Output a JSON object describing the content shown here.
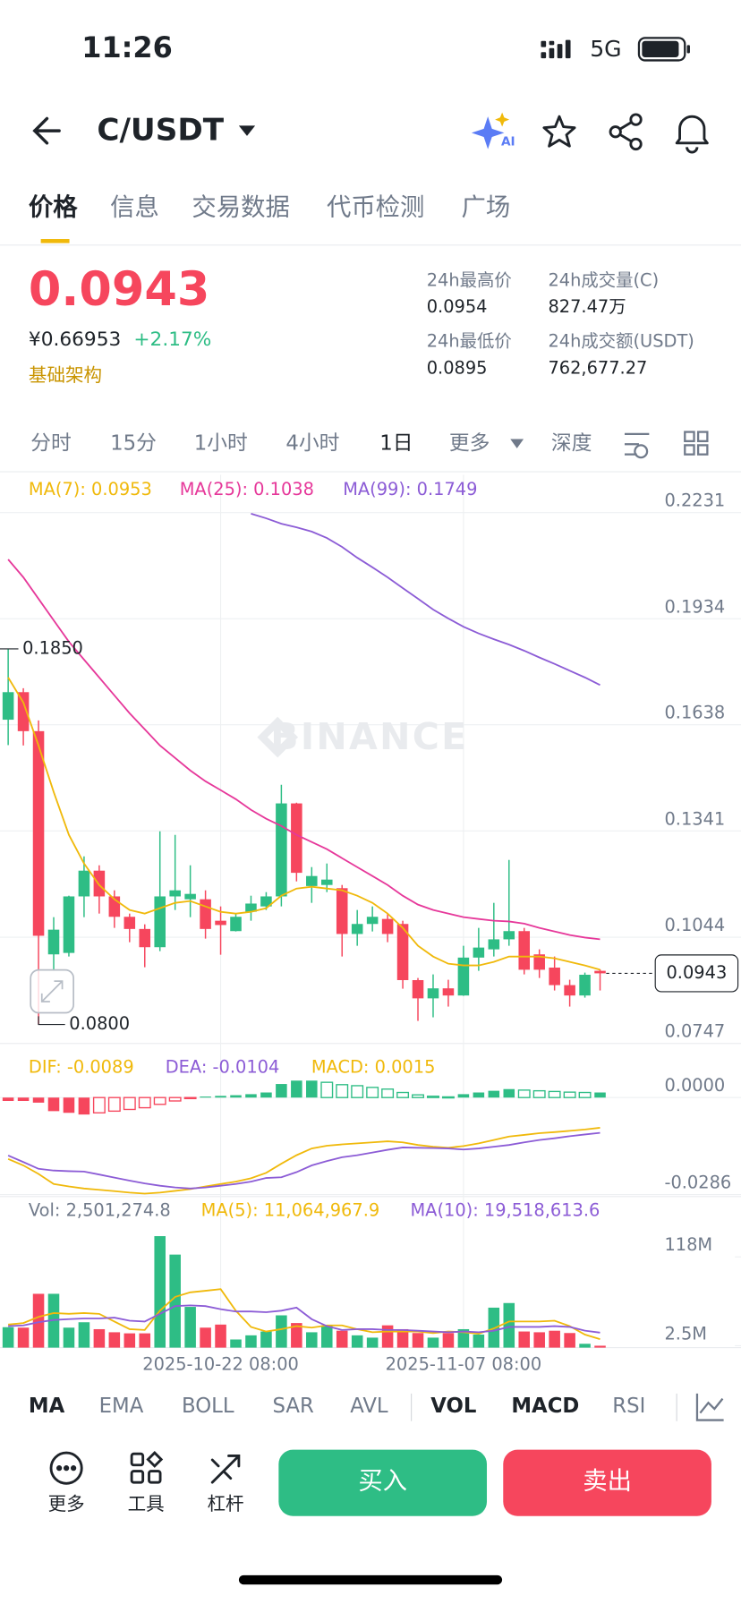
{
  "status_bar": {
    "time": "11:26",
    "network": "5G"
  },
  "header": {
    "pair": "C/USDT",
    "ai_label": "AI"
  },
  "tabs": [
    "价格",
    "信息",
    "交易数据",
    "代币检测",
    "广场"
  ],
  "price": {
    "last": "0.0943",
    "cny": "¥0.66953",
    "change": "+2.17%",
    "tag": "基础架构"
  },
  "stats": [
    {
      "label": "24h最高价",
      "value": "0.0954"
    },
    {
      "label": "24h成交量(C)",
      "value": "827.47万"
    },
    {
      "label": "24h最低价",
      "value": "0.0895"
    },
    {
      "label": "24h成交额(USDT)",
      "value": "762,677.27"
    }
  ],
  "intervals": [
    "分时",
    "15分",
    "1小时",
    "4小时",
    "1日",
    "更多",
    "深度"
  ],
  "indicators": [
    "MA",
    "EMA",
    "BOLL",
    "SAR",
    "AVL",
    "VOL",
    "MACD",
    "RSI"
  ],
  "actions": [
    "更多",
    "工具",
    "杠杆"
  ],
  "buy": "买入",
  "sell": "卖出",
  "chart_data": [
    {
      "type": "candlestick",
      "watermark": "BINANCE",
      "up_color": "#2ebd85",
      "down_color": "#f6465d",
      "grid": true,
      "categories": [
        null,
        null,
        null,
        null,
        null,
        null,
        null,
        null,
        null,
        null,
        null,
        null,
        null,
        null,
        "2025-10-22 08:00",
        null,
        null,
        null,
        null,
        null,
        null,
        null,
        null,
        null,
        null,
        null,
        null,
        null,
        null,
        null,
        "2025-11-07 08:00",
        null,
        null,
        null,
        null,
        null,
        null,
        null,
        null,
        null
      ],
      "open": [
        0.1652,
        0.1729,
        0.162,
        0.0996,
        0.1,
        0.1158,
        0.123,
        0.1158,
        0.1101,
        0.1067,
        0.1016,
        0.1158,
        0.115,
        0.115,
        0.109,
        0.1061,
        0.1115,
        0.113,
        0.1158,
        0.1418,
        0.1187,
        0.119,
        0.1181,
        0.1053,
        0.1081,
        0.1095,
        0.1081,
        0.0924,
        0.0873,
        0.0901,
        0.0881,
        0.0987,
        0.101,
        0.1038,
        0.1061,
        0.0996,
        0.0959,
        0.091,
        0.0881,
        0.095
      ],
      "high": [
        0.185,
        0.174,
        0.165,
        0.11,
        0.116,
        0.127,
        0.1245,
        0.1175,
        0.111,
        0.108,
        0.134,
        0.133,
        0.1245,
        0.1175,
        0.113,
        0.111,
        0.116,
        0.117,
        0.147,
        0.142,
        0.124,
        0.125,
        0.119,
        0.112,
        0.113,
        0.111,
        0.109,
        0.093,
        0.094,
        0.0925,
        0.102,
        0.107,
        0.114,
        0.126,
        0.107,
        0.101,
        0.099,
        0.0925,
        0.0945,
        0.0954
      ],
      "low": [
        0.1581,
        0.158,
        0.08,
        0.095,
        0.099,
        0.11,
        0.111,
        0.107,
        0.103,
        0.096,
        0.1005,
        0.112,
        0.11,
        0.104,
        0.0995,
        0.106,
        0.109,
        0.112,
        0.113,
        0.12,
        0.114,
        0.117,
        0.099,
        0.102,
        0.106,
        0.103,
        0.09,
        0.081,
        0.082,
        0.085,
        0.088,
        0.095,
        0.099,
        0.102,
        0.094,
        0.093,
        0.0895,
        0.085,
        0.0875,
        0.0895
      ],
      "close": [
        0.1729,
        0.162,
        0.1048,
        0.1065,
        0.1158,
        0.123,
        0.1158,
        0.1101,
        0.1067,
        0.1016,
        0.1158,
        0.1175,
        0.1165,
        0.1067,
        0.1078,
        0.1101,
        0.1138,
        0.1158,
        0.1418,
        0.1224,
        0.1215,
        0.1205,
        0.1053,
        0.1081,
        0.1101,
        0.1053,
        0.0924,
        0.0873,
        0.0901,
        0.0881,
        0.0987,
        0.1015,
        0.1038,
        0.1061,
        0.0953,
        0.0953,
        0.091,
        0.0881,
        0.0939,
        0.0943
      ],
      "series": [
        {
          "name": "MA(7): 0.0953",
          "color": "#f0b90b",
          "values": [
            0.177,
            0.17,
            0.158,
            0.145,
            0.133,
            0.125,
            0.119,
            0.115,
            0.112,
            0.111,
            0.1125,
            0.114,
            0.1145,
            0.113,
            0.1115,
            0.111,
            0.1115,
            0.1125,
            0.116,
            0.118,
            0.1185,
            0.118,
            0.1175,
            0.116,
            0.114,
            0.111,
            0.107,
            0.102,
            0.099,
            0.097,
            0.0965,
            0.0965,
            0.0975,
            0.099,
            0.099,
            0.099,
            0.0985,
            0.0975,
            0.0965,
            0.0953
          ]
        },
        {
          "name": "MA(25): 0.1038",
          "color": "#e6389a",
          "values": [
            0.21,
            0.205,
            0.199,
            0.193,
            0.187,
            0.182,
            0.177,
            0.172,
            0.167,
            0.1625,
            0.158,
            0.1545,
            0.151,
            0.148,
            0.1455,
            0.143,
            0.14,
            0.1375,
            0.1355,
            0.133,
            0.131,
            0.129,
            0.1265,
            0.124,
            0.1215,
            0.119,
            0.116,
            0.1135,
            0.112,
            0.111,
            0.11,
            0.1095,
            0.109,
            0.1088,
            0.1082,
            0.107,
            0.106,
            0.105,
            0.1043,
            0.1038
          ]
        },
        {
          "name": "MA(99): 0.1749",
          "color": "#8c5cd6",
          "values": [
            null,
            null,
            null,
            null,
            null,
            null,
            null,
            null,
            null,
            null,
            null,
            null,
            null,
            null,
            null,
            null,
            0.2228,
            0.2215,
            0.22,
            0.219,
            0.2178,
            0.216,
            0.2135,
            0.2105,
            0.2078,
            0.205,
            0.202,
            0.199,
            0.196,
            0.1935,
            0.1912,
            0.1893,
            0.1877,
            0.1862,
            0.1845,
            0.1826,
            0.1808,
            0.1789,
            0.177,
            0.1749
          ]
        }
      ],
      "high_marker": {
        "value": 0.185,
        "label": "0.1850"
      },
      "low_marker": {
        "value": 0.08,
        "label": "0.0800"
      },
      "last_price": 0.0943,
      "ylim": [
        0.0747,
        0.2231
      ],
      "yticks": [
        0.2231,
        0.1934,
        0.1638,
        0.1341,
        0.1044,
        0.0747
      ]
    },
    {
      "type": "macd",
      "grid": true,
      "up_color": "#2ebd85",
      "down_color": "#f6465d",
      "series": [
        {
          "name": "DIF: -0.0089",
          "color": "#f0b90b",
          "values": [
            -0.0181,
            -0.02,
            -0.0225,
            -0.0255,
            -0.0262,
            -0.0268,
            -0.0272,
            -0.0276,
            -0.028,
            -0.0283,
            -0.028,
            -0.0275,
            -0.027,
            -0.0262,
            -0.0255,
            -0.0248,
            -0.0238,
            -0.0222,
            -0.0195,
            -0.017,
            -0.015,
            -0.0142,
            -0.0138,
            -0.0135,
            -0.0132,
            -0.0129,
            -0.0132,
            -0.014,
            -0.0145,
            -0.0148,
            -0.0143,
            -0.0135,
            -0.0125,
            -0.0115,
            -0.011,
            -0.0105,
            -0.0102,
            -0.0098,
            -0.0094,
            -0.0089
          ]
        },
        {
          "name": "DEA: -0.0104",
          "color": "#8c5cd6",
          "values": [
            -0.0171,
            -0.019,
            -0.021,
            -0.0215,
            -0.0217,
            -0.0218,
            -0.0227,
            -0.0236,
            -0.0245,
            -0.0253,
            -0.026,
            -0.0265,
            -0.0268,
            -0.0265,
            -0.026,
            -0.0255,
            -0.0248,
            -0.0237,
            -0.0235,
            -0.022,
            -0.02,
            -0.0187,
            -0.0176,
            -0.017,
            -0.0162,
            -0.0154,
            -0.0147,
            -0.0148,
            -0.0149,
            -0.015,
            -0.0153,
            -0.015,
            -0.0145,
            -0.014,
            -0.0132,
            -0.0125,
            -0.012,
            -0.0114,
            -0.0109,
            -0.0104
          ]
        },
        {
          "name": "MACD: 0.0015",
          "color": "#f0b90b",
          "style": "bar",
          "values": [
            -0.001,
            -0.001,
            -0.0015,
            -0.004,
            -0.0045,
            -0.005,
            -0.0045,
            -0.004,
            -0.0035,
            -0.003,
            -0.002,
            -0.001,
            -0.0002,
            0.0003,
            0.0005,
            0.0007,
            0.001,
            0.0015,
            0.004,
            0.005,
            0.005,
            0.0045,
            0.0038,
            0.0035,
            0.003,
            0.0025,
            0.0015,
            0.0008,
            0.0004,
            0.0002,
            0.001,
            0.0015,
            0.002,
            0.0025,
            0.0022,
            0.002,
            0.0018,
            0.0016,
            0.0015,
            0.0015
          ]
        }
      ],
      "ylim": [
        -0.03,
        0.0125
      ],
      "yticks": [
        {
          "value": 0,
          "label": "0.0000"
        },
        -0.0286
      ]
    },
    {
      "type": "volume",
      "grid": false,
      "series": [
        {
          "name": "Vol: 2,501,274.8",
          "color": "#707a8a",
          "style": "bar",
          "values": [
            26600000,
            26000000,
            70000000,
            70000000,
            26000000,
            33000000,
            24000000,
            20000000,
            18600000,
            18600000,
            145000000,
            121000000,
            53000000,
            26000000,
            30000000,
            10600000,
            16000000,
            21000000,
            42000000,
            32000000,
            20000000,
            29000000,
            22000000,
            16000000,
            13000000,
            29000000,
            24000000,
            19000000,
            13000000,
            19000000,
            24000000,
            17000000,
            52000000,
            58000000,
            21000000,
            20000000,
            22000000,
            19000000,
            5000000,
            2501274.8
          ]
        },
        {
          "name": "MA(5): 11,064,967.9",
          "color": "#f0b90b",
          "values": [
            30000000,
            32000000,
            40000000,
            45000000,
            44000000,
            45000000,
            44000000,
            34000000,
            24000000,
            23000000,
            48000000,
            66000000,
            72000000,
            74000000,
            76000000,
            48000000,
            27000000,
            21000000,
            24000000,
            28000000,
            26000000,
            29000000,
            29000000,
            24000000,
            20000000,
            21000000,
            21000000,
            21000000,
            19000000,
            21000000,
            20000000,
            18000000,
            25000000,
            34000000,
            34000000,
            34000000,
            35000000,
            28000000,
            17000000,
            11064967.9
          ]
        },
        {
          "name": "MA(10): 19,518,613.6",
          "color": "#8c5cd6",
          "values": [
            28000000,
            29000000,
            33000000,
            36000000,
            37000000,
            38000000,
            38000000,
            39000000,
            35000000,
            34000000,
            44000000,
            54000000,
            55000000,
            54000000,
            50000000,
            47000000,
            47000000,
            46000000,
            48000000,
            52000000,
            37000000,
            28000000,
            23000000,
            24000000,
            24000000,
            23000000,
            23000000,
            22000000,
            21000000,
            20000000,
            21000000,
            20000000,
            22000000,
            27000000,
            27000000,
            27000000,
            28000000,
            27000000,
            22000000,
            19518613.6
          ]
        }
      ],
      "ylim": [
        0,
        150000000
      ],
      "yticks": [
        {
          "value": 118000000,
          "label": "118M"
        },
        {
          "value": 2500000,
          "label": "2.5M"
        }
      ]
    }
  ]
}
